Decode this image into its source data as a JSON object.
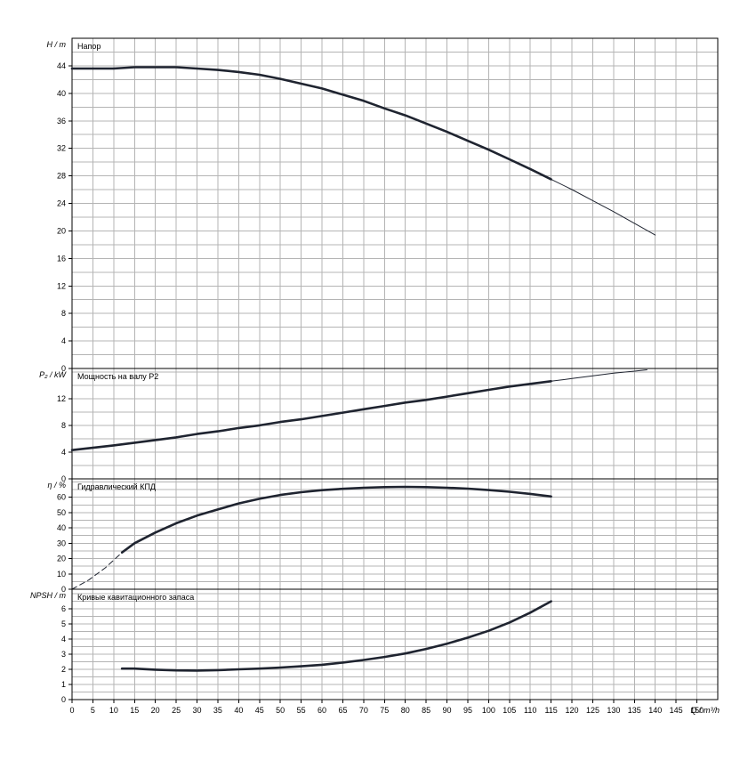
{
  "chart_data": [
    {
      "type": "line",
      "title": "Напор",
      "ylabel": "H / m",
      "xlim": [
        0,
        155
      ],
      "ylim": [
        0,
        48
      ],
      "yticks": [
        0,
        4,
        8,
        12,
        16,
        20,
        24,
        28,
        32,
        36,
        40,
        44
      ],
      "series": [
        {
          "name": "",
          "style": "thick",
          "points": [
            [
              0,
              43.6
            ],
            [
              5,
              43.6
            ],
            [
              10,
              43.6
            ],
            [
              15,
              43.8
            ],
            [
              20,
              43.8
            ],
            [
              25,
              43.8
            ],
            [
              30,
              43.6
            ],
            [
              35,
              43.4
            ],
            [
              40,
              43.1
            ],
            [
              45,
              42.7
            ],
            [
              50,
              42.1
            ],
            [
              55,
              41.4
            ],
            [
              60,
              40.7
            ],
            [
              65,
              39.8
            ],
            [
              70,
              38.9
            ],
            [
              75,
              37.8
            ],
            [
              80,
              36.8
            ],
            [
              85,
              35.6
            ],
            [
              90,
              34.4
            ],
            [
              95,
              33.1
            ],
            [
              100,
              31.8
            ],
            [
              105,
              30.4
            ],
            [
              110,
              29.0
            ],
            [
              115,
              27.5
            ]
          ]
        },
        {
          "name": "",
          "style": "thin",
          "points": [
            [
              115,
              27.5
            ],
            [
              120,
              26.0
            ],
            [
              125,
              24.4
            ],
            [
              130,
              22.8
            ],
            [
              135,
              21.1
            ],
            [
              140,
              19.4
            ]
          ]
        }
      ]
    },
    {
      "type": "line",
      "title": "Мощность на валу P2",
      "ylabel": "P₂ / kW",
      "xlim": [
        0,
        155
      ],
      "ylim": [
        0,
        16.5
      ],
      "yticks": [
        0,
        4,
        8,
        12
      ],
      "series": [
        {
          "name": "",
          "style": "thick",
          "points": [
            [
              0,
              4.3
            ],
            [
              10,
              5.0
            ],
            [
              15,
              5.4
            ],
            [
              20,
              5.8
            ],
            [
              25,
              6.2
            ],
            [
              30,
              6.7
            ],
            [
              35,
              7.1
            ],
            [
              40,
              7.6
            ],
            [
              45,
              8.0
            ],
            [
              50,
              8.5
            ],
            [
              55,
              8.9
            ],
            [
              60,
              9.4
            ],
            [
              65,
              9.9
            ],
            [
              70,
              10.4
            ],
            [
              75,
              10.9
            ],
            [
              80,
              11.4
            ],
            [
              85,
              11.8
            ],
            [
              90,
              12.3
            ],
            [
              95,
              12.8
            ],
            [
              100,
              13.3
            ],
            [
              105,
              13.8
            ],
            [
              110,
              14.2
            ],
            [
              115,
              14.6
            ]
          ]
        },
        {
          "name": "",
          "style": "thin",
          "points": [
            [
              115,
              14.6
            ],
            [
              120,
              15.0
            ],
            [
              125,
              15.4
            ],
            [
              130,
              15.8
            ],
            [
              135,
              16.1
            ],
            [
              138,
              16.3
            ]
          ]
        }
      ]
    },
    {
      "type": "line",
      "title": "Гидравлический КПД",
      "ylabel": "η / %",
      "xlim": [
        0,
        155
      ],
      "ylim": [
        0,
        72
      ],
      "yticks": [
        0,
        10,
        20,
        30,
        40,
        50,
        60
      ],
      "series": [
        {
          "name": "",
          "style": "dashed",
          "points": [
            [
              0,
              0
            ],
            [
              4,
              6
            ],
            [
              8,
              14
            ],
            [
              12,
              24
            ]
          ]
        },
        {
          "name": "",
          "style": "thick",
          "points": [
            [
              12,
              24
            ],
            [
              15,
              30
            ],
            [
              20,
              37
            ],
            [
              25,
              43
            ],
            [
              30,
              48
            ],
            [
              35,
              52
            ],
            [
              40,
              56
            ],
            [
              45,
              59
            ],
            [
              50,
              61.5
            ],
            [
              55,
              63.3
            ],
            [
              60,
              64.6
            ],
            [
              65,
              65.5
            ],
            [
              70,
              66.2
            ],
            [
              75,
              66.6
            ],
            [
              80,
              66.8
            ],
            [
              85,
              66.6
            ],
            [
              90,
              66.2
            ],
            [
              95,
              65.6
            ],
            [
              100,
              64.7
            ],
            [
              105,
              63.6
            ],
            [
              110,
              62.2
            ],
            [
              115,
              60.5
            ]
          ]
        }
      ]
    },
    {
      "type": "line",
      "title": "Кривые кавитационного запаса",
      "ylabel": "NPSH / m",
      "xlabel": "Q / m³/h",
      "xlim": [
        0,
        155
      ],
      "ylim": [
        0,
        7.3
      ],
      "yticks": [
        0,
        1,
        2,
        3,
        4,
        5,
        6
      ],
      "xticks": [
        0,
        5,
        10,
        15,
        20,
        25,
        30,
        35,
        40,
        45,
        50,
        55,
        60,
        65,
        70,
        75,
        80,
        85,
        90,
        95,
        100,
        105,
        110,
        115,
        120,
        125,
        130,
        135,
        140,
        145,
        150
      ],
      "series": [
        {
          "name": "",
          "style": "thick",
          "points": [
            [
              12,
              2.05
            ],
            [
              15,
              2.05
            ],
            [
              20,
              1.98
            ],
            [
              25,
              1.93
            ],
            [
              30,
              1.92
            ],
            [
              35,
              1.95
            ],
            [
              40,
              2.0
            ],
            [
              45,
              2.05
            ],
            [
              50,
              2.12
            ],
            [
              55,
              2.2
            ],
            [
              60,
              2.3
            ],
            [
              65,
              2.45
            ],
            [
              70,
              2.62
            ],
            [
              75,
              2.82
            ],
            [
              80,
              3.05
            ],
            [
              85,
              3.35
            ],
            [
              90,
              3.7
            ],
            [
              95,
              4.1
            ],
            [
              100,
              4.55
            ],
            [
              105,
              5.1
            ],
            [
              110,
              5.75
            ],
            [
              115,
              6.5
            ]
          ]
        }
      ]
    }
  ]
}
